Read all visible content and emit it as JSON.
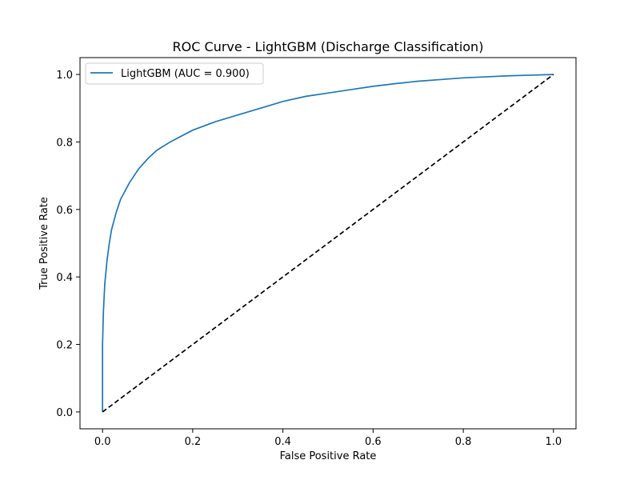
{
  "chart_data": {
    "type": "line",
    "title": "ROC Curve - LightGBM (Discharge Classification)",
    "xlabel": "False Positive Rate",
    "ylabel": "True Positive Rate",
    "xlim": [
      -0.05,
      1.05
    ],
    "ylim": [
      -0.05,
      1.05
    ],
    "xticks": [
      0.0,
      0.2,
      0.4,
      0.6,
      0.8,
      1.0
    ],
    "yticks": [
      0.0,
      0.2,
      0.4,
      0.6,
      0.8,
      1.0
    ],
    "xtick_labels": [
      "0.0",
      "0.2",
      "0.4",
      "0.6",
      "0.8",
      "1.0"
    ],
    "ytick_labels": [
      "0.0",
      "0.2",
      "0.4",
      "0.6",
      "0.8",
      "1.0"
    ],
    "grid": false,
    "legend_position": "top-left",
    "series": [
      {
        "name": "LightGBM (AUC = 0.900)",
        "color": "#1f77b4",
        "style": "solid",
        "x": [
          0.0,
          0.0,
          0.002,
          0.005,
          0.01,
          0.015,
          0.02,
          0.03,
          0.04,
          0.05,
          0.06,
          0.08,
          0.1,
          0.12,
          0.15,
          0.2,
          0.25,
          0.3,
          0.35,
          0.4,
          0.45,
          0.5,
          0.55,
          0.6,
          0.65,
          0.7,
          0.75,
          0.8,
          0.85,
          0.9,
          0.95,
          1.0
        ],
        "y": [
          0.0,
          0.2,
          0.3,
          0.38,
          0.45,
          0.5,
          0.54,
          0.59,
          0.63,
          0.655,
          0.68,
          0.72,
          0.75,
          0.775,
          0.8,
          0.835,
          0.86,
          0.88,
          0.9,
          0.92,
          0.935,
          0.945,
          0.955,
          0.965,
          0.973,
          0.98,
          0.985,
          0.99,
          0.993,
          0.996,
          0.998,
          1.0
        ]
      },
      {
        "name": "",
        "color": "#000000",
        "style": "dashed",
        "x": [
          0.0,
          1.0
        ],
        "y": [
          0.0,
          1.0
        ]
      }
    ]
  }
}
